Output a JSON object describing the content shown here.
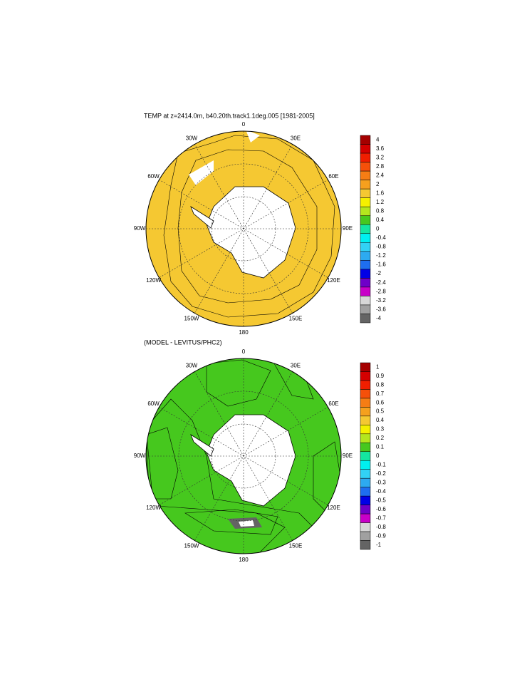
{
  "panels": [
    {
      "title": "TEMP at z=2414.0m, b40.20th.track1.1deg.005 [1981-2005]",
      "lon_labels": [
        "0",
        "30E",
        "60E",
        "90E",
        "120E",
        "150E",
        "180",
        "150W",
        "120W",
        "90W",
        "60W",
        "30W"
      ],
      "colorbar": {
        "labels": [
          4,
          3.6,
          3.2,
          2.8,
          2.4,
          2,
          1.6,
          1.2,
          0.8,
          0.4,
          0,
          -0.4,
          -0.8,
          -1.2,
          -1.6,
          -2,
          -2.4,
          -2.8,
          -3.2,
          -3.6,
          -4
        ],
        "colors": [
          "#a50000",
          "#d40000",
          "#f01e00",
          "#f5500a",
          "#f57d14",
          "#f5a01e",
          "#f5c832",
          "#f5f000",
          "#b4e61e",
          "#46c81e",
          "#14e6a0",
          "#00f0f0",
          "#32d2f5",
          "#2daaf0",
          "#1e6ef0",
          "#0000e6",
          "#6e00c8",
          "#c800c8",
          "#d7d7d7",
          "#a0a0a0",
          "#646464"
        ]
      }
    },
    {
      "title": "(MODEL - LEVITUS/PHC2)",
      "lon_labels": [
        "0",
        "30E",
        "60E",
        "90E",
        "120E",
        "150E",
        "180",
        "150W",
        "120W",
        "90W",
        "60W",
        "30W"
      ],
      "colorbar": {
        "labels": [
          1,
          0.9,
          0.8,
          0.7,
          0.6,
          0.5,
          0.4,
          0.3,
          0.2,
          0.1,
          0,
          -0.1,
          -0.2,
          -0.3,
          -0.4,
          -0.5,
          -0.6,
          -0.7,
          -0.8,
          -0.9,
          -1
        ],
        "colors": [
          "#a50000",
          "#d40000",
          "#f01e00",
          "#f5500a",
          "#f57d14",
          "#f5a01e",
          "#f5c832",
          "#f5f000",
          "#b4e61e",
          "#46c81e",
          "#14e6a0",
          "#00f0f0",
          "#32d2f5",
          "#2daaf0",
          "#1e6ef0",
          "#0000e6",
          "#6e00c8",
          "#c800c8",
          "#d7d7d7",
          "#a0a0a0",
          "#646464"
        ]
      }
    }
  ]
}
